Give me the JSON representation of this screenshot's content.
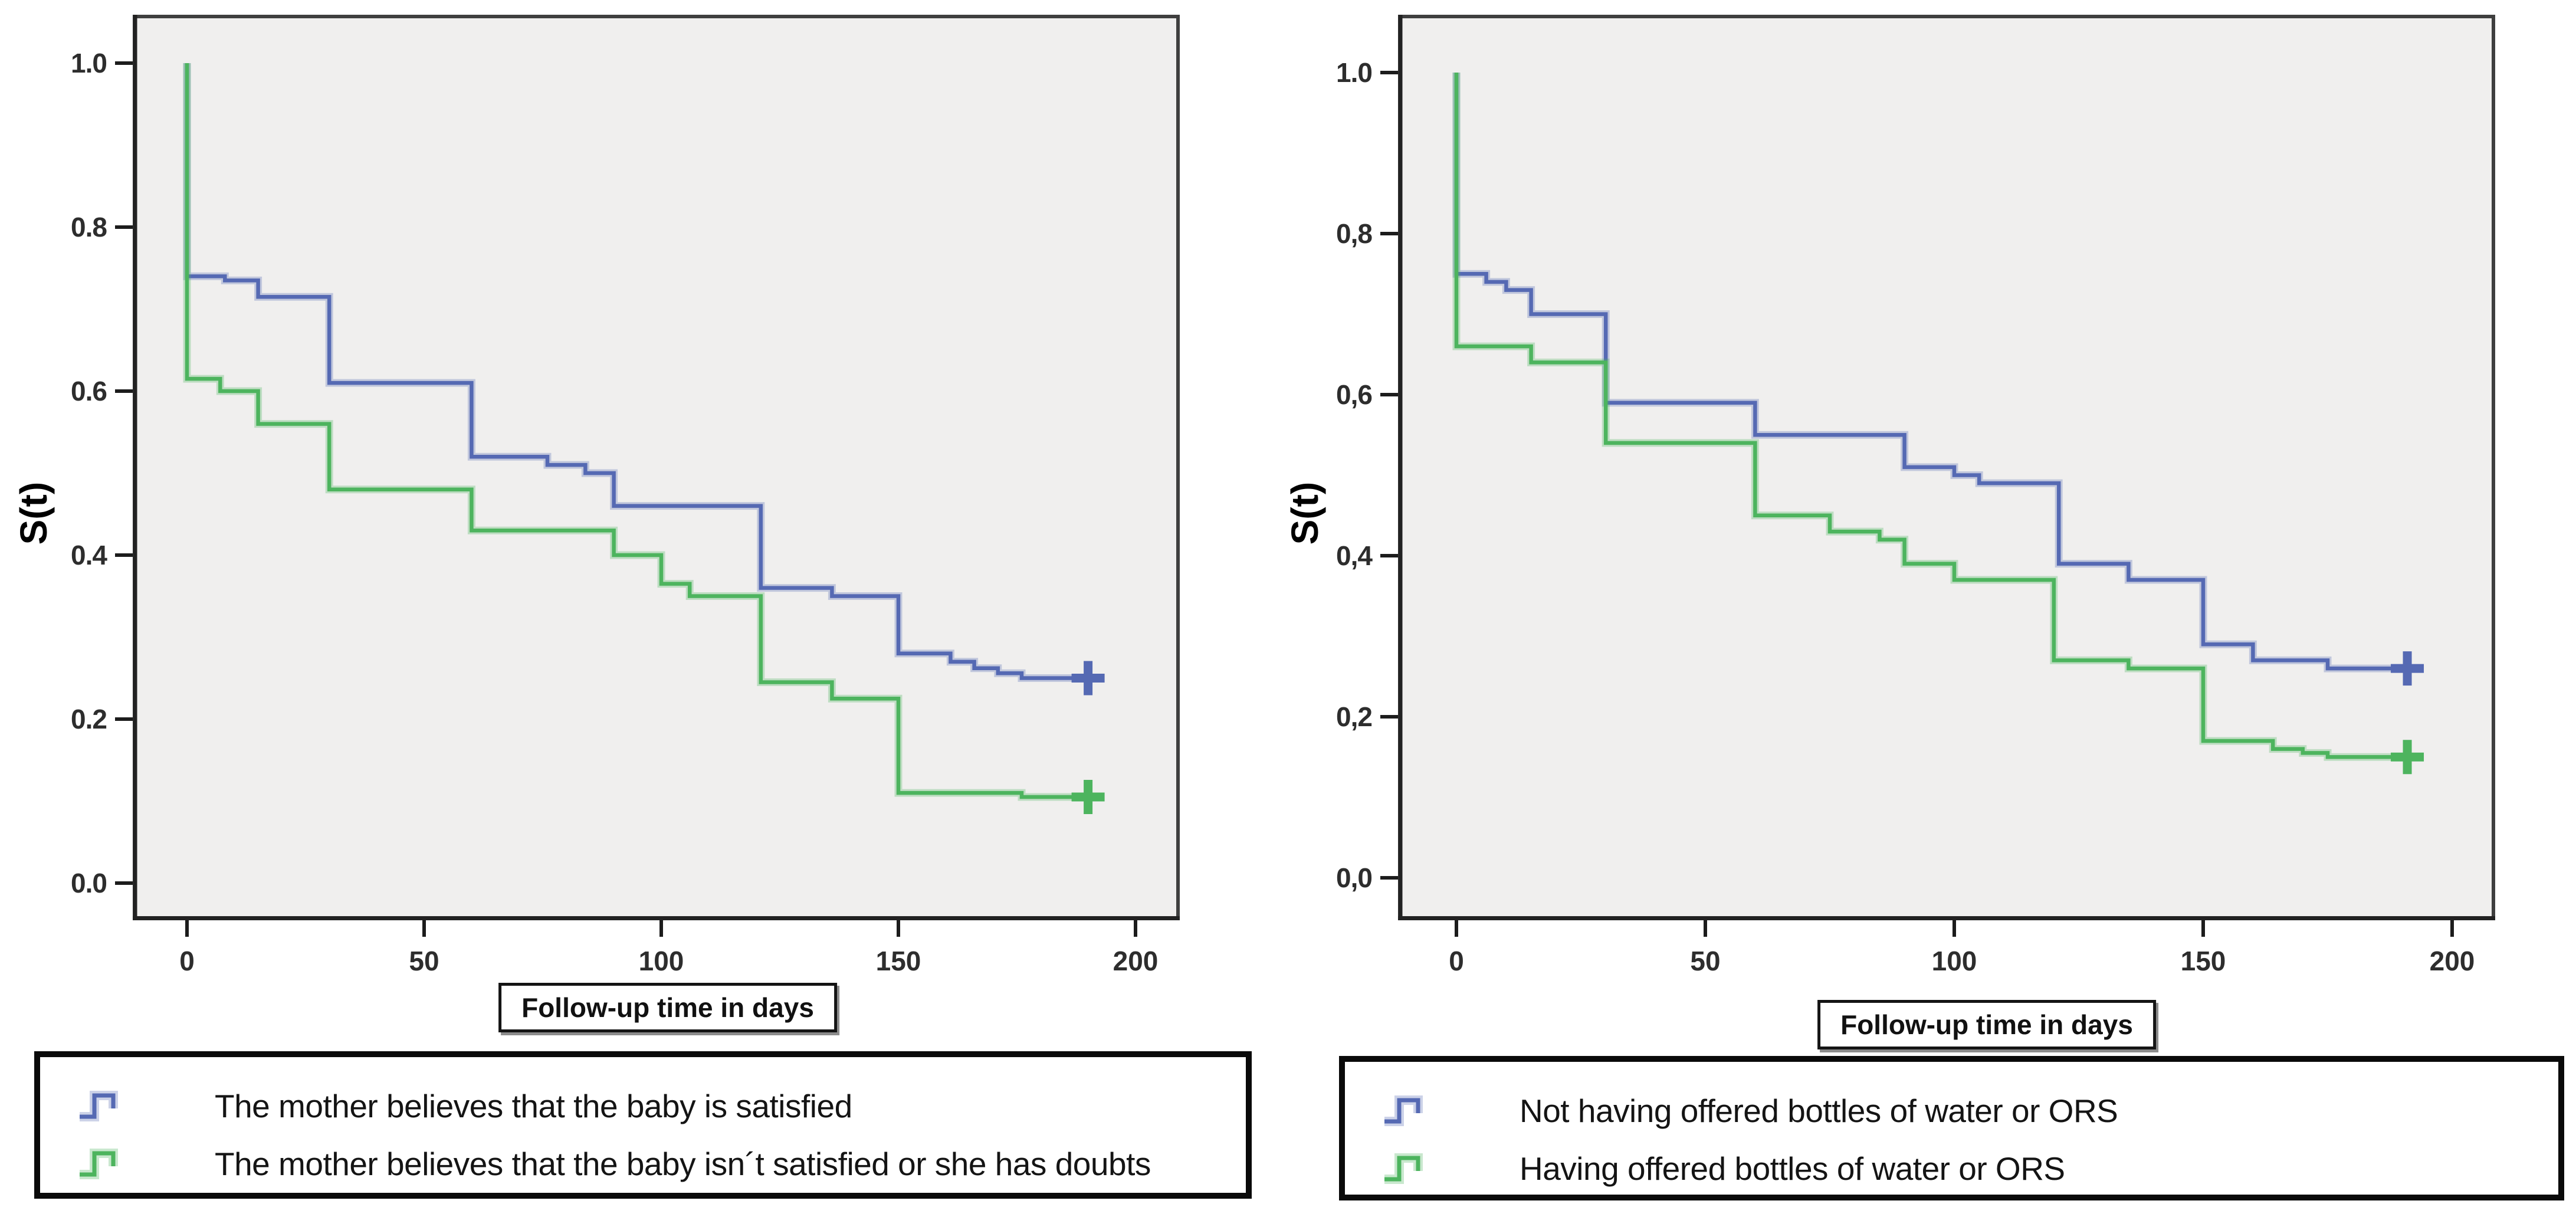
{
  "page": {
    "background": "#ffffff"
  },
  "colors": {
    "series_blue": "#5569b3",
    "series_green": "#4db45e",
    "plot_background": "#f0efee",
    "frame": "#3f3f3f",
    "axis": "#1c1c1c"
  },
  "chart_data": [
    {
      "type": "line",
      "subtype": "kaplan-meier-step",
      "title": "",
      "ylabel": "S(t)",
      "xlabel": "Follow-up time in days",
      "x_ticks": [
        {
          "v": 0,
          "label": "0"
        },
        {
          "v": 50,
          "label": "50"
        },
        {
          "v": 100,
          "label": "100"
        },
        {
          "v": 150,
          "label": "150"
        },
        {
          "v": 200,
          "label": "200"
        }
      ],
      "y_ticks": [
        {
          "v": 0.0,
          "label": "0.0"
        },
        {
          "v": 0.2,
          "label": "0.2"
        },
        {
          "v": 0.4,
          "label": "0.4"
        },
        {
          "v": 0.6,
          "label": "0.6"
        },
        {
          "v": 0.8,
          "label": "0.8"
        },
        {
          "v": 1.0,
          "label": "1.0"
        }
      ],
      "x_range": [
        -11.5,
        209
      ],
      "y_range": [
        -0.045,
        1.06
      ],
      "grid": false,
      "legend_position": "bottom",
      "series": [
        {
          "name": "satisfied",
          "label": "The mother believes that the baby is satisfied",
          "color": "#5569b3",
          "start": [
            0,
            1.0
          ],
          "steps": [
            [
              0,
              0.74
            ],
            [
              8,
              0.735
            ],
            [
              15,
              0.715
            ],
            [
              30,
              0.61
            ],
            [
              60,
              0.52
            ],
            [
              76,
              0.51
            ],
            [
              84,
              0.5
            ],
            [
              90,
              0.46
            ],
            [
              121,
              0.36
            ],
            [
              136,
              0.35
            ],
            [
              150,
              0.28
            ],
            [
              161,
              0.27
            ],
            [
              166,
              0.262
            ],
            [
              171,
              0.256
            ],
            [
              176,
              0.25
            ]
          ],
          "censor_time": 190,
          "censor_marker": "+"
        },
        {
          "name": "not-satisfied-or-doubts",
          "label": "The mother believes that the baby isn´t satisfied or she has doubts",
          "color": "#4db45e",
          "start": [
            0,
            1.0
          ],
          "steps": [
            [
              0,
              0.615
            ],
            [
              7,
              0.6
            ],
            [
              15,
              0.56
            ],
            [
              30,
              0.48
            ],
            [
              60,
              0.43
            ],
            [
              90,
              0.4
            ],
            [
              100,
              0.365
            ],
            [
              106,
              0.35
            ],
            [
              121,
              0.245
            ],
            [
              136,
              0.225
            ],
            [
              150,
              0.11
            ],
            [
              176,
              0.105
            ]
          ],
          "censor_time": 190,
          "censor_marker": "+"
        }
      ]
    },
    {
      "type": "line",
      "subtype": "kaplan-meier-step",
      "title": "",
      "ylabel": "S(t)",
      "xlabel": "Follow-up time in days",
      "x_ticks": [
        {
          "v": 0,
          "label": "0"
        },
        {
          "v": 50,
          "label": "50"
        },
        {
          "v": 100,
          "label": "100"
        },
        {
          "v": 150,
          "label": "150"
        },
        {
          "v": 200,
          "label": "200"
        }
      ],
      "y_ticks": [
        {
          "v": 0.0,
          "label": "0,0"
        },
        {
          "v": 0.2,
          "label": "0,2"
        },
        {
          "v": 0.4,
          "label": "0,4"
        },
        {
          "v": 0.6,
          "label": "0,6"
        },
        {
          "v": 0.8,
          "label": "0,8"
        },
        {
          "v": 1.0,
          "label": "1.0"
        }
      ],
      "x_range": [
        -11.7,
        208.5
      ],
      "y_range": [
        -0.05,
        1.07
      ],
      "grid": false,
      "legend_position": "bottom",
      "series": [
        {
          "name": "not-offered-bottles",
          "label": "Not having offered bottles of water or ORS",
          "color": "#5569b3",
          "start": [
            0,
            1.0
          ],
          "steps": [
            [
              0,
              0.75
            ],
            [
              6,
              0.74
            ],
            [
              10,
              0.73
            ],
            [
              15,
              0.7
            ],
            [
              30,
              0.59
            ],
            [
              60,
              0.55
            ],
            [
              90,
              0.51
            ],
            [
              100,
              0.5
            ],
            [
              105,
              0.49
            ],
            [
              121,
              0.39
            ],
            [
              135,
              0.37
            ],
            [
              150,
              0.29
            ],
            [
              160,
              0.27
            ],
            [
              175,
              0.26
            ]
          ],
          "censor_time": 191,
          "censor_marker": "+"
        },
        {
          "name": "offered-bottles",
          "label": "Having offered bottles of water or ORS",
          "color": "#4db45e",
          "start": [
            0,
            1.0
          ],
          "steps": [
            [
              0,
              0.66
            ],
            [
              15,
              0.64
            ],
            [
              30,
              0.54
            ],
            [
              60,
              0.45
            ],
            [
              75,
              0.43
            ],
            [
              85,
              0.42
            ],
            [
              90,
              0.39
            ],
            [
              100,
              0.37
            ],
            [
              120,
              0.27
            ],
            [
              135,
              0.26
            ],
            [
              150,
              0.17
            ],
            [
              164,
              0.16
            ],
            [
              170,
              0.155
            ],
            [
              175,
              0.15
            ]
          ],
          "censor_time": 191,
          "censor_marker": "+"
        }
      ]
    }
  ]
}
